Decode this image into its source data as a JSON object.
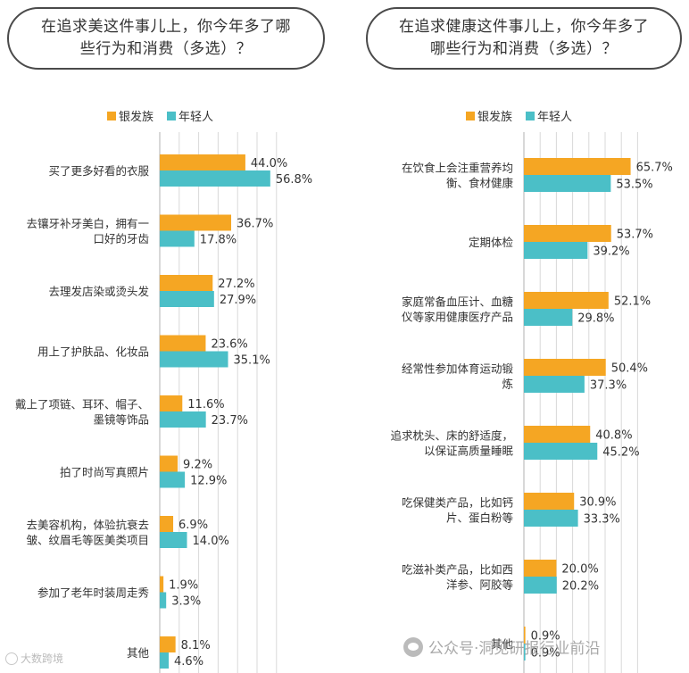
{
  "colors": {
    "silver": "#F5A623",
    "young": "#4BBFC7",
    "grid": "#d9d9d9",
    "axis": "#b0b0b0",
    "text": "#333333"
  },
  "left_title": "在追求美这件事儿上，你今年多了哪些行为和消费（多选）？",
  "right_title": "在追求健康这件事儿上，你今年多了哪些行为和消费（多选）？",
  "watermarks": {
    "left": "大数跨境",
    "right": "公众号·洞见研报行业前沿"
  },
  "chart_data": [
    {
      "type": "bar",
      "orientation": "horizontal",
      "title": "在追求美这件事儿上，你今年多了哪些行为和消费（多选）？",
      "legend_position": "top",
      "xlim": [
        0,
        60
      ],
      "grid": true,
      "categories": [
        [
          "买了更多好看的衣服"
        ],
        [
          "去镶牙补牙美白，拥有一",
          "口好的牙齿"
        ],
        [
          "去理发店染或烫头发"
        ],
        [
          "用上了护肤品、化妆品"
        ],
        [
          "戴上了项链、耳环、帽子、",
          "墨镜等饰品"
        ],
        [
          "拍了时尚写真照片"
        ],
        [
          "去美容机构，体验抗衰去",
          "皱、纹眉毛等医美类项目"
        ],
        [
          "参加了老年时装周走秀"
        ],
        [
          "其他"
        ]
      ],
      "series": [
        {
          "name": "银发族",
          "values": [
            44.0,
            36.7,
            27.2,
            23.6,
            11.6,
            9.2,
            6.9,
            1.9,
            8.1
          ],
          "labels": [
            "44.0%",
            "36.7%",
            "27.2%",
            "23.6%",
            "11.6%",
            "9.2%",
            "6.9%",
            "1.9%",
            "8.1%"
          ]
        },
        {
          "name": "年轻人",
          "values": [
            56.8,
            17.8,
            27.9,
            35.1,
            23.7,
            12.9,
            14.0,
            3.3,
            4.6
          ],
          "labels": [
            "56.8%",
            "17.8%",
            "27.9%",
            "35.1%",
            "23.7%",
            "12.9%",
            "14.0%",
            "3.3%",
            "4.6%"
          ]
        }
      ]
    },
    {
      "type": "bar",
      "orientation": "horizontal",
      "title": "在追求健康这件事儿上，你今年多了哪些行为和消费（多选）？",
      "legend_position": "top",
      "xlim": [
        0,
        70
      ],
      "grid": true,
      "categories": [
        [
          "在饮食上会注重营养均",
          "衡、食材健康"
        ],
        [
          "定期体检"
        ],
        [
          "家庭常备血压计、血糖",
          "仪等家用健康医疗产品"
        ],
        [
          "经常性参加体育运动锻",
          "炼"
        ],
        [
          "追求枕头、床的舒适度，",
          "以保证高质量睡眠"
        ],
        [
          "吃保健类产品，比如钙",
          "片、蛋白粉等"
        ],
        [
          "吃滋补类产品，比如西",
          "洋参、阿胶等"
        ],
        [
          "其他"
        ]
      ],
      "series": [
        {
          "name": "银发族",
          "values": [
            65.7,
            53.7,
            52.1,
            50.4,
            40.8,
            30.9,
            20.0,
            0.9
          ],
          "labels": [
            "65.7%",
            "53.7%",
            "52.1%",
            "50.4%",
            "40.8%",
            "30.9%",
            "20.0%",
            "0.9%"
          ]
        },
        {
          "name": "年轻人",
          "values": [
            53.5,
            39.2,
            29.8,
            37.3,
            45.2,
            33.3,
            20.2,
            0.9
          ],
          "labels": [
            "53.5%",
            "39.2%",
            "29.8%",
            "37.3%",
            "45.2%",
            "33.3%",
            "20.2%",
            "0.9%"
          ]
        }
      ]
    }
  ]
}
